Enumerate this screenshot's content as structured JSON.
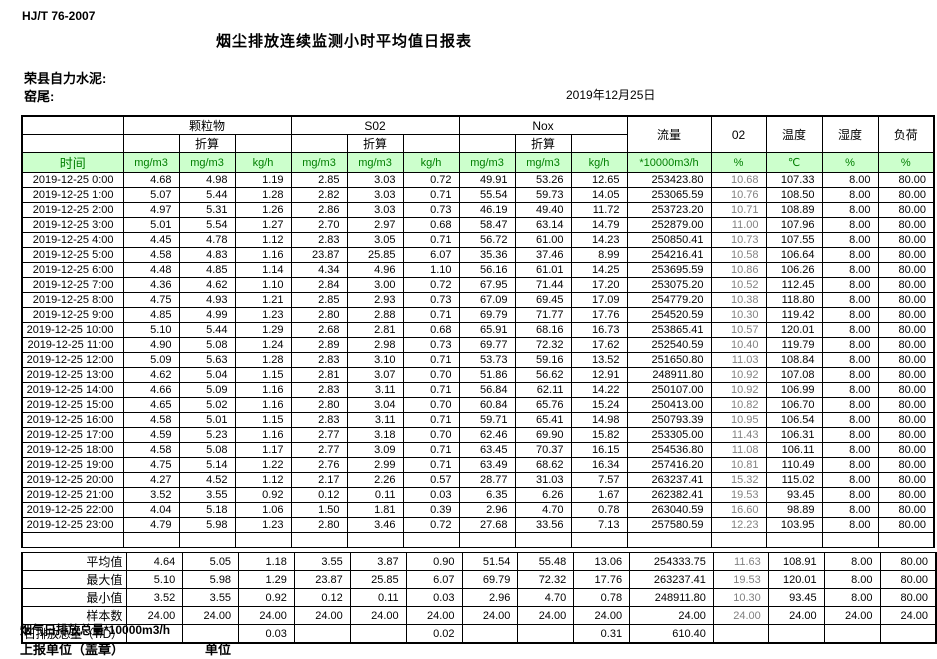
{
  "page": {
    "standard": "HJ/T  76-2007",
    "title": "烟尘排放连续监测小时平均值日报表",
    "company": "荣县自力水泥:",
    "station": "窑尾:",
    "date": "2019年12月25日"
  },
  "colors": {
    "header_bg": "#ccffcc",
    "header_text": "#007f00",
    "o2_text": "#808080"
  },
  "table": {
    "header": {
      "time_label": "时间",
      "groups": [
        {
          "label": "颗粒物",
          "sub": "折算"
        },
        {
          "label": "S02",
          "sub": "折算"
        },
        {
          "label": "Nox",
          "sub": "折算"
        }
      ],
      "flow_label": "流量",
      "o2_label": "02",
      "temp_label": "温度",
      "humidity_label": "湿度",
      "load_label": "负荷",
      "units": [
        "mg/m3",
        "mg/m3",
        "kg/h",
        "mg/m3",
        "mg/m3",
        "kg/h",
        "mg/m3",
        "mg/m3",
        "kg/h",
        "*10000m3/h",
        "%",
        "℃",
        "%",
        "%"
      ]
    },
    "rows": [
      {
        "time": "2019-12-25 0:00",
        "values": [
          "4.68",
          "4.98",
          "1.19",
          "2.85",
          "3.03",
          "0.72",
          "49.91",
          "53.26",
          "12.65",
          "253423.80",
          "10.68",
          "107.33",
          "8.00",
          "80.00"
        ]
      },
      {
        "time": "2019-12-25 1:00",
        "values": [
          "5.07",
          "5.44",
          "1.28",
          "2.82",
          "3.03",
          "0.71",
          "55.54",
          "59.73",
          "14.05",
          "253065.59",
          "10.76",
          "108.50",
          "8.00",
          "80.00"
        ]
      },
      {
        "time": "2019-12-25 2:00",
        "values": [
          "4.97",
          "5.31",
          "1.26",
          "2.86",
          "3.03",
          "0.73",
          "46.19",
          "49.40",
          "11.72",
          "253723.20",
          "10.71",
          "108.89",
          "8.00",
          "80.00"
        ]
      },
      {
        "time": "2019-12-25 3:00",
        "values": [
          "5.01",
          "5.54",
          "1.27",
          "2.70",
          "2.97",
          "0.68",
          "58.47",
          "63.14",
          "14.79",
          "252879.00",
          "11.00",
          "107.96",
          "8.00",
          "80.00"
        ]
      },
      {
        "time": "2019-12-25 4:00",
        "values": [
          "4.45",
          "4.78",
          "1.12",
          "2.83",
          "3.05",
          "0.71",
          "56.72",
          "61.00",
          "14.23",
          "250850.41",
          "10.73",
          "107.55",
          "8.00",
          "80.00"
        ]
      },
      {
        "time": "2019-12-25 5:00",
        "values": [
          "4.58",
          "4.83",
          "1.16",
          "23.87",
          "25.85",
          "6.07",
          "35.36",
          "37.46",
          "8.99",
          "254216.41",
          "10.58",
          "106.64",
          "8.00",
          "80.00"
        ]
      },
      {
        "time": "2019-12-25 6:00",
        "values": [
          "4.48",
          "4.85",
          "1.14",
          "4.34",
          "4.96",
          "1.10",
          "56.16",
          "61.01",
          "14.25",
          "253695.59",
          "10.86",
          "106.26",
          "8.00",
          "80.00"
        ]
      },
      {
        "time": "2019-12-25 7:00",
        "values": [
          "4.36",
          "4.62",
          "1.10",
          "2.84",
          "3.00",
          "0.72",
          "67.95",
          "71.44",
          "17.20",
          "253075.20",
          "10.52",
          "112.45",
          "8.00",
          "80.00"
        ]
      },
      {
        "time": "2019-12-25 8:00",
        "values": [
          "4.75",
          "4.93",
          "1.21",
          "2.85",
          "2.93",
          "0.73",
          "67.09",
          "69.45",
          "17.09",
          "254779.20",
          "10.38",
          "118.80",
          "8.00",
          "80.00"
        ]
      },
      {
        "time": "2019-12-25 9:00",
        "values": [
          "4.85",
          "4.99",
          "1.23",
          "2.80",
          "2.88",
          "0.71",
          "69.79",
          "71.77",
          "17.76",
          "254520.59",
          "10.30",
          "119.42",
          "8.00",
          "80.00"
        ]
      },
      {
        "time": "2019-12-25 10:00",
        "values": [
          "5.10",
          "5.44",
          "1.29",
          "2.68",
          "2.81",
          "0.68",
          "65.91",
          "68.16",
          "16.73",
          "253865.41",
          "10.57",
          "120.01",
          "8.00",
          "80.00"
        ]
      },
      {
        "time": "2019-12-25 11:00",
        "values": [
          "4.90",
          "5.08",
          "1.24",
          "2.89",
          "2.98",
          "0.73",
          "69.77",
          "72.32",
          "17.62",
          "252540.59",
          "10.40",
          "119.79",
          "8.00",
          "80.00"
        ]
      },
      {
        "time": "2019-12-25 12:00",
        "values": [
          "5.09",
          "5.63",
          "1.28",
          "2.83",
          "3.10",
          "0.71",
          "53.73",
          "59.16",
          "13.52",
          "251650.80",
          "11.03",
          "108.84",
          "8.00",
          "80.00"
        ]
      },
      {
        "time": "2019-12-25 13:00",
        "values": [
          "4.62",
          "5.04",
          "1.15",
          "2.81",
          "3.07",
          "0.70",
          "51.86",
          "56.62",
          "12.91",
          "248911.80",
          "10.92",
          "107.08",
          "8.00",
          "80.00"
        ]
      },
      {
        "time": "2019-12-25 14:00",
        "values": [
          "4.66",
          "5.09",
          "1.16",
          "2.83",
          "3.11",
          "0.71",
          "56.84",
          "62.11",
          "14.22",
          "250107.00",
          "10.92",
          "106.99",
          "8.00",
          "80.00"
        ]
      },
      {
        "time": "2019-12-25 15:00",
        "values": [
          "4.65",
          "5.02",
          "1.16",
          "2.80",
          "3.04",
          "0.70",
          "60.84",
          "65.76",
          "15.24",
          "250413.00",
          "10.82",
          "106.70",
          "8.00",
          "80.00"
        ]
      },
      {
        "time": "2019-12-25 16:00",
        "values": [
          "4.58",
          "5.01",
          "1.15",
          "2.83",
          "3.11",
          "0.71",
          "59.71",
          "65.41",
          "14.98",
          "250793.39",
          "10.95",
          "106.54",
          "8.00",
          "80.00"
        ]
      },
      {
        "time": "2019-12-25 17:00",
        "values": [
          "4.59",
          "5.23",
          "1.16",
          "2.77",
          "3.18",
          "0.70",
          "62.46",
          "69.90",
          "15.82",
          "253305.00",
          "11.43",
          "106.31",
          "8.00",
          "80.00"
        ]
      },
      {
        "time": "2019-12-25 18:00",
        "values": [
          "4.58",
          "5.08",
          "1.17",
          "2.77",
          "3.09",
          "0.71",
          "63.45",
          "70.37",
          "16.15",
          "254536.80",
          "11.08",
          "106.11",
          "8.00",
          "80.00"
        ]
      },
      {
        "time": "2019-12-25 19:00",
        "values": [
          "4.75",
          "5.14",
          "1.22",
          "2.76",
          "2.99",
          "0.71",
          "63.49",
          "68.62",
          "16.34",
          "257416.20",
          "10.81",
          "110.49",
          "8.00",
          "80.00"
        ]
      },
      {
        "time": "2019-12-25 20:00",
        "values": [
          "4.27",
          "4.52",
          "1.12",
          "2.17",
          "2.26",
          "0.57",
          "28.77",
          "31.03",
          "7.57",
          "263237.41",
          "15.32",
          "115.02",
          "8.00",
          "80.00"
        ]
      },
      {
        "time": "2019-12-25 21:00",
        "values": [
          "3.52",
          "3.55",
          "0.92",
          "0.12",
          "0.11",
          "0.03",
          "6.35",
          "6.26",
          "1.67",
          "262382.41",
          "19.53",
          "93.45",
          "8.00",
          "80.00"
        ]
      },
      {
        "time": "2019-12-25 22:00",
        "values": [
          "4.04",
          "5.18",
          "1.06",
          "1.50",
          "1.81",
          "0.39",
          "2.96",
          "4.70",
          "0.78",
          "263040.59",
          "16.60",
          "98.89",
          "8.00",
          "80.00"
        ]
      },
      {
        "time": "2019-12-25 23:00",
        "values": [
          "4.79",
          "5.98",
          "1.23",
          "2.80",
          "3.46",
          "0.72",
          "27.68",
          "33.56",
          "7.13",
          "257580.59",
          "12.23",
          "103.95",
          "8.00",
          "80.00"
        ]
      }
    ],
    "summary": [
      {
        "label": "平均值",
        "align": "right",
        "values": [
          "4.64",
          "5.05",
          "1.18",
          "3.55",
          "3.87",
          "0.90",
          "51.54",
          "55.48",
          "13.06",
          "254333.75",
          "11.63",
          "108.91",
          "8.00",
          "80.00"
        ]
      },
      {
        "label": "最大值",
        "align": "right",
        "values": [
          "5.10",
          "5.98",
          "1.29",
          "23.87",
          "25.85",
          "6.07",
          "69.79",
          "72.32",
          "17.76",
          "263237.41",
          "19.53",
          "120.01",
          "8.00",
          "80.00"
        ]
      },
      {
        "label": "最小值",
        "align": "right",
        "values": [
          "3.52",
          "3.55",
          "0.92",
          "0.12",
          "0.11",
          "0.03",
          "2.96",
          "4.70",
          "0.78",
          "248911.80",
          "10.30",
          "93.45",
          "8.00",
          "80.00"
        ]
      },
      {
        "label": "样本数",
        "align": "right",
        "values": [
          "24.00",
          "24.00",
          "24.00",
          "24.00",
          "24.00",
          "24.00",
          "24.00",
          "24.00",
          "24.00",
          "24.00",
          "24.00",
          "24.00",
          "24.00",
          "24.00"
        ]
      },
      {
        "label": "日排放总量（T/D）",
        "align": "left",
        "values": [
          "",
          "",
          "0.03",
          "",
          "",
          "0.02",
          "",
          "",
          "0.31",
          "610.40",
          "",
          "",
          "",
          ""
        ]
      }
    ]
  },
  "footer": {
    "flow_total_label": "烟气日排放总量*10000m3/h",
    "report_unit_label": "上报单位（盖章）",
    "unit_label": "单位"
  }
}
